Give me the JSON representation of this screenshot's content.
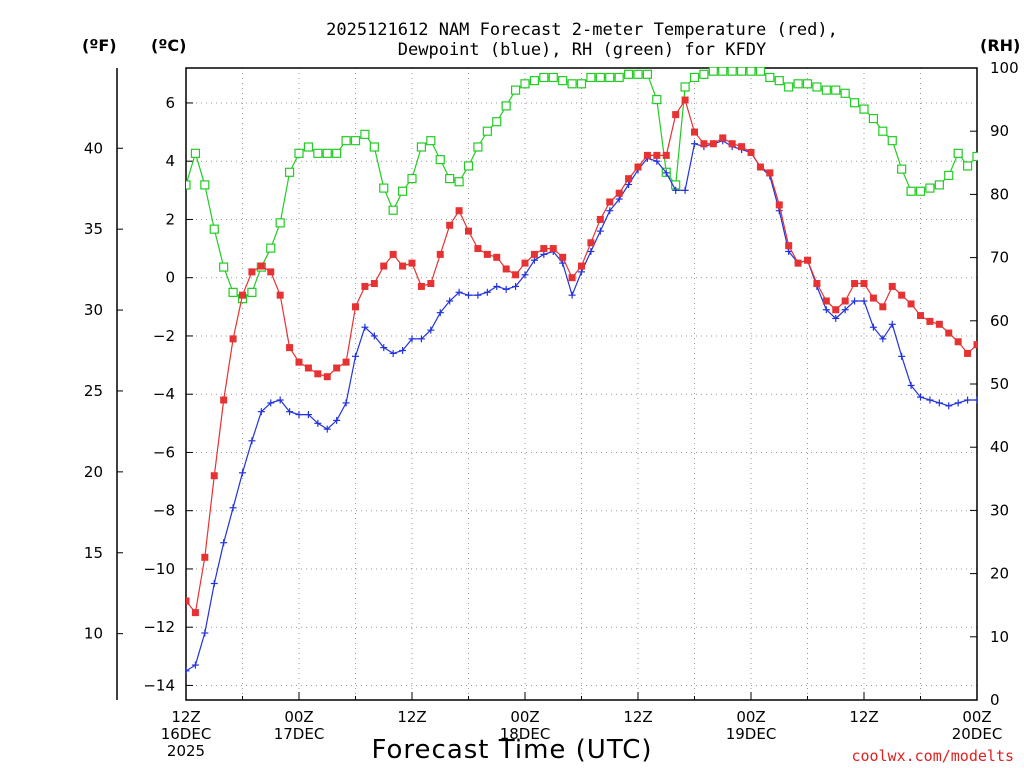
{
  "chart_data": {
    "type": "line",
    "title_lines": [
      "2025121612 NAM Forecast 2-meter Temperature (red),",
      "Dewpoint (blue), RH (green) for KFDY"
    ],
    "left_units_f": "(ºF)",
    "left_units_c": "(ºC)",
    "right_units": "(RH)",
    "xlabel": "Forecast Time (UTC)",
    "credit": "coolwx.com/modelts",
    "x_range_hours": [
      0,
      84
    ],
    "celsius_range": [
      -14.5,
      7.2
    ],
    "rh_range": [
      0,
      100
    ],
    "celsius_ticks": [
      "−14",
      "−12",
      "−10",
      "−8",
      "−6",
      "−4",
      "−2",
      "0",
      "2",
      "4",
      "6"
    ],
    "fahrenheit_ticks": [
      "10",
      "15",
      "20",
      "25",
      "30",
      "35",
      "40"
    ],
    "rh_ticks": [
      "0",
      "10",
      "20",
      "30",
      "40",
      "50",
      "60",
      "70",
      "80",
      "90",
      "100"
    ],
    "x_ticks": [
      {
        "hour": 0,
        "lines": [
          "12Z",
          "16DEC",
          "2025"
        ]
      },
      {
        "hour": 12,
        "lines": [
          "00Z",
          "17DEC"
        ]
      },
      {
        "hour": 24,
        "lines": [
          "12Z"
        ]
      },
      {
        "hour": 36,
        "lines": [
          "00Z",
          "18DEC"
        ]
      },
      {
        "hour": 48,
        "lines": [
          "12Z"
        ]
      },
      {
        "hour": 60,
        "lines": [
          "00Z",
          "19DEC"
        ]
      },
      {
        "hour": 72,
        "lines": [
          "12Z"
        ]
      },
      {
        "hour": 84,
        "lines": [
          "00Z",
          "20DEC"
        ]
      }
    ],
    "series": [
      {
        "name": "Temperature (°C)",
        "color": "#e63232",
        "marker": "square-filled",
        "axis": "celsius",
        "values": [
          -11.1,
          -11.5,
          -9.6,
          -6.8,
          -4.2,
          -2.1,
          -0.6,
          0.2,
          0.4,
          0.2,
          -0.6,
          -2.4,
          -2.9,
          -3.1,
          -3.3,
          -3.4,
          -3.1,
          -2.9,
          -1.0,
          -0.3,
          -0.2,
          0.4,
          0.8,
          0.4,
          0.5,
          -0.3,
          -0.2,
          0.8,
          1.8,
          2.3,
          1.6,
          1.0,
          0.8,
          0.7,
          0.3,
          0.1,
          0.5,
          0.8,
          1.0,
          1.0,
          0.7,
          0.0,
          0.4,
          1.2,
          2.0,
          2.6,
          2.9,
          3.4,
          3.8,
          4.2,
          4.2,
          4.2,
          5.6,
          6.1,
          5.0,
          4.6,
          4.6,
          4.8,
          4.6,
          4.5,
          4.3,
          3.8,
          3.6,
          2.5,
          1.1,
          0.5,
          0.6,
          -0.2,
          -0.8,
          -1.1,
          -0.8,
          -0.2,
          -0.2,
          -0.7,
          -1.0,
          -0.3,
          -0.6,
          -0.9,
          -1.3,
          -1.5,
          -1.6,
          -1.9,
          -2.2,
          -2.6,
          -2.3
        ]
      },
      {
        "name": "Dewpoint (°C)",
        "color": "#2233dd",
        "marker": "plus",
        "axis": "celsius",
        "values": [
          -13.5,
          -13.3,
          -12.2,
          -10.5,
          -9.1,
          -7.9,
          -6.7,
          -5.6,
          -4.6,
          -4.3,
          -4.2,
          -4.6,
          -4.7,
          -4.7,
          -5.0,
          -5.2,
          -4.9,
          -4.3,
          -2.7,
          -1.7,
          -2.0,
          -2.4,
          -2.6,
          -2.5,
          -2.1,
          -2.1,
          -1.8,
          -1.2,
          -0.8,
          -0.5,
          -0.6,
          -0.6,
          -0.5,
          -0.3,
          -0.4,
          -0.3,
          0.1,
          0.6,
          0.8,
          0.9,
          0.5,
          -0.6,
          0.2,
          0.9,
          1.6,
          2.3,
          2.7,
          3.2,
          3.7,
          4.1,
          4.0,
          3.6,
          3.0,
          3.0,
          4.6,
          4.5,
          4.6,
          4.7,
          4.5,
          4.4,
          4.3,
          3.8,
          3.5,
          2.3,
          0.9,
          0.5,
          0.6,
          -0.3,
          -1.1,
          -1.4,
          -1.1,
          -0.8,
          -0.8,
          -1.7,
          -2.1,
          -1.6,
          -2.7,
          -3.7,
          -4.1,
          -4.2,
          -4.3,
          -4.4,
          -4.3,
          -4.2,
          -4.2
        ]
      },
      {
        "name": "RH (%)",
        "color": "#22cc22",
        "marker": "square-open",
        "axis": "rh",
        "values": [
          81.5,
          86.5,
          81.5,
          74.5,
          68.5,
          64.5,
          63.5,
          64.5,
          68.5,
          71.5,
          75.5,
          83.5,
          86.5,
          87.5,
          86.5,
          86.5,
          86.5,
          88.5,
          88.5,
          89.5,
          87.5,
          81.0,
          77.5,
          80.5,
          82.5,
          87.5,
          88.5,
          85.5,
          82.5,
          82.0,
          84.5,
          87.5,
          90.0,
          91.5,
          94.0,
          96.5,
          97.5,
          98.0,
          98.5,
          98.5,
          98.0,
          97.5,
          97.5,
          98.5,
          98.5,
          98.5,
          98.5,
          99.0,
          99.0,
          99.0,
          95.0,
          83.5,
          81.5,
          97.0,
          98.5,
          99.0,
          99.5,
          99.5,
          99.5,
          99.5,
          99.5,
          99.5,
          98.5,
          98.0,
          97.0,
          97.5,
          97.5,
          97.0,
          96.5,
          96.5,
          96.0,
          94.5,
          93.5,
          92.0,
          90.0,
          88.5,
          84.0,
          80.5,
          80.5,
          81.0,
          81.5,
          83.0,
          86.5,
          84.5,
          86.0
        ]
      }
    ]
  }
}
